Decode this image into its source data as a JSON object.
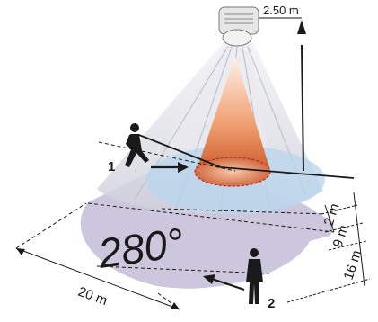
{
  "diagram": {
    "mounting_height": "2.50 m",
    "angle": "280°",
    "dimensions": {
      "inner": "2 m",
      "middle": "9 m",
      "outer": "16 m",
      "width": "20 m"
    },
    "markers": {
      "person_1": "1",
      "person_2": "2"
    }
  },
  "colors": {
    "outer_zone": "#cfcadf",
    "cone": "#dcdce4",
    "inner_zone": "#b7d6ec",
    "core": "#d56a36",
    "detector_body": "#e6e6e6"
  }
}
